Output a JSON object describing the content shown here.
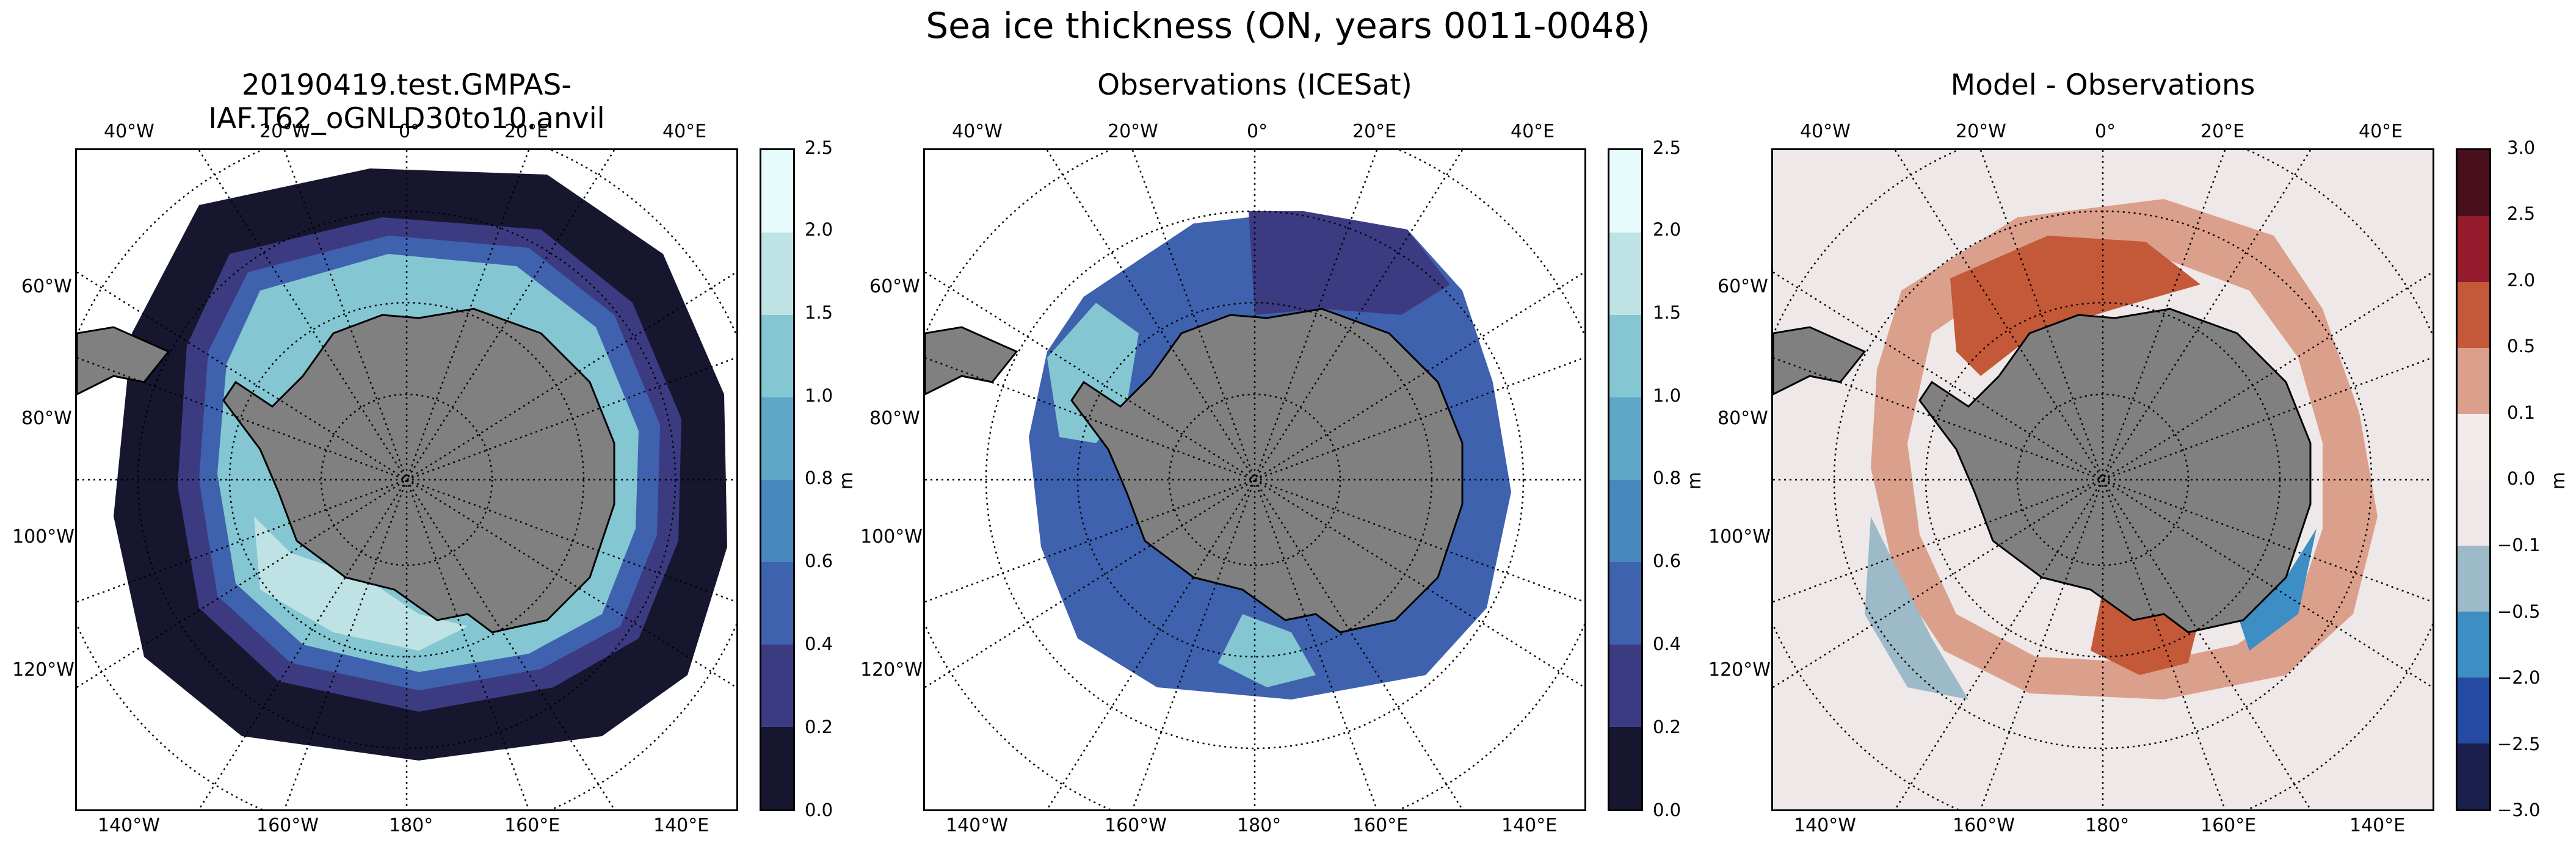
{
  "figure": {
    "title": "Sea ice thickness (ON, years 0011-0048)"
  },
  "panels": [
    {
      "title": "20190419.test.GMPAS-IAF.T62_oGNLD30to10.anvil",
      "colorbar": {
        "unit": "m",
        "ticks": [
          "0.0",
          "0.2",
          "0.4",
          "0.6",
          "0.8",
          "1.0",
          "1.5",
          "2.0",
          "2.5"
        ],
        "colors": [
          "#e6fbfb",
          "#bfe3e5",
          "#84c6d2",
          "#5ea7c8",
          "#4788bf",
          "#3f62ae",
          "#3c3b82",
          "#17162f"
        ]
      }
    },
    {
      "title": "Observations (ICESat)",
      "colorbar": {
        "unit": "m",
        "ticks": [
          "0.0",
          "0.2",
          "0.4",
          "0.6",
          "0.8",
          "1.0",
          "1.5",
          "2.0",
          "2.5"
        ],
        "colors": [
          "#e6fbfb",
          "#bfe3e5",
          "#84c6d2",
          "#5ea7c8",
          "#4788bf",
          "#3f62ae",
          "#3c3b82",
          "#17162f"
        ]
      }
    },
    {
      "title": "Model - Observations",
      "colorbar": {
        "unit": "m",
        "ticks": [
          "−3.0",
          "−2.5",
          "−2.0",
          "−0.5",
          "−0.1",
          "0.0",
          "0.1",
          "0.5",
          "2.0",
          "2.5",
          "3.0"
        ],
        "colors": [
          "#4a0f1c",
          "#951a2b",
          "#c4593a",
          "#dba08c",
          "#f1ecea",
          "#efe8e8",
          "#9cbac8",
          "#3c8ec4",
          "#254aa4",
          "#1a1f4e"
        ]
      }
    }
  ],
  "graticule": {
    "top_labels": [
      "40°W",
      "20°W",
      "0°",
      "20°E",
      "40°E"
    ],
    "left_labels": [
      "60°W",
      "80°W",
      "100°W",
      "120°W"
    ],
    "bottom_labels": [
      "140°W",
      "160°W",
      "180°",
      "160°E",
      "140°E"
    ]
  }
}
